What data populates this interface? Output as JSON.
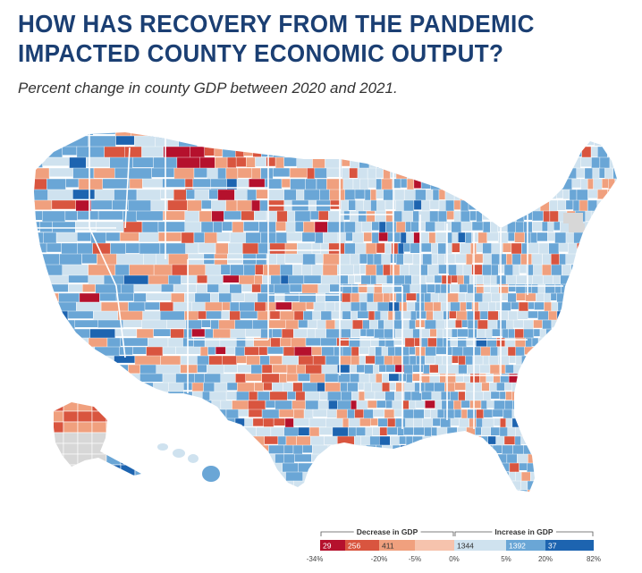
{
  "title": "HOW HAS RECOVERY FROM THE PANDEMIC IMPACTED COUNTY ECONOMIC OUTPUT?",
  "title_line1": "HOW HAS RECOVERY FROM THE PANDEMIC",
  "title_line2": "IMPACTED COUNTY ECONOMIC OUTPUT?",
  "subtitle": "Percent change in county GDP between 2020 and 2021.",
  "colors": {
    "title": "#1b3f73",
    "dark_red": "#b5112d",
    "red": "#d9553f",
    "light_red": "#f0a07e",
    "lightest_blue": "#cfe2ef",
    "light_blue": "#6aa6d6",
    "dark_blue": "#1d64b0",
    "no_data": "#d7d7d7",
    "border": "#ffffff"
  },
  "legend": {
    "decrease_label": "Decrease in GDP",
    "increase_label": "Increase in GDP",
    "bins": [
      {
        "count": "29",
        "color": "#b5112d",
        "text_color": "#ffffff"
      },
      {
        "count": "256",
        "color": "#d9553f",
        "text_color": "#ffffff"
      },
      {
        "count": "411",
        "color": "#f0a07e",
        "text_color": "#333333"
      },
      {
        "count": "",
        "color": "#f6c3ad",
        "text_color": "#333333"
      },
      {
        "count": "1344",
        "color": "#cfe2ef",
        "text_color": "#333333"
      },
      {
        "count": "1392",
        "color": "#6aa6d6",
        "text_color": "#ffffff"
      },
      {
        "count": "37",
        "color": "#1d64b0",
        "text_color": "#ffffff"
      }
    ],
    "ticks": [
      "-34%",
      "-20%",
      "-5%",
      "0%",
      "5%",
      "20%",
      "82%"
    ]
  }
}
